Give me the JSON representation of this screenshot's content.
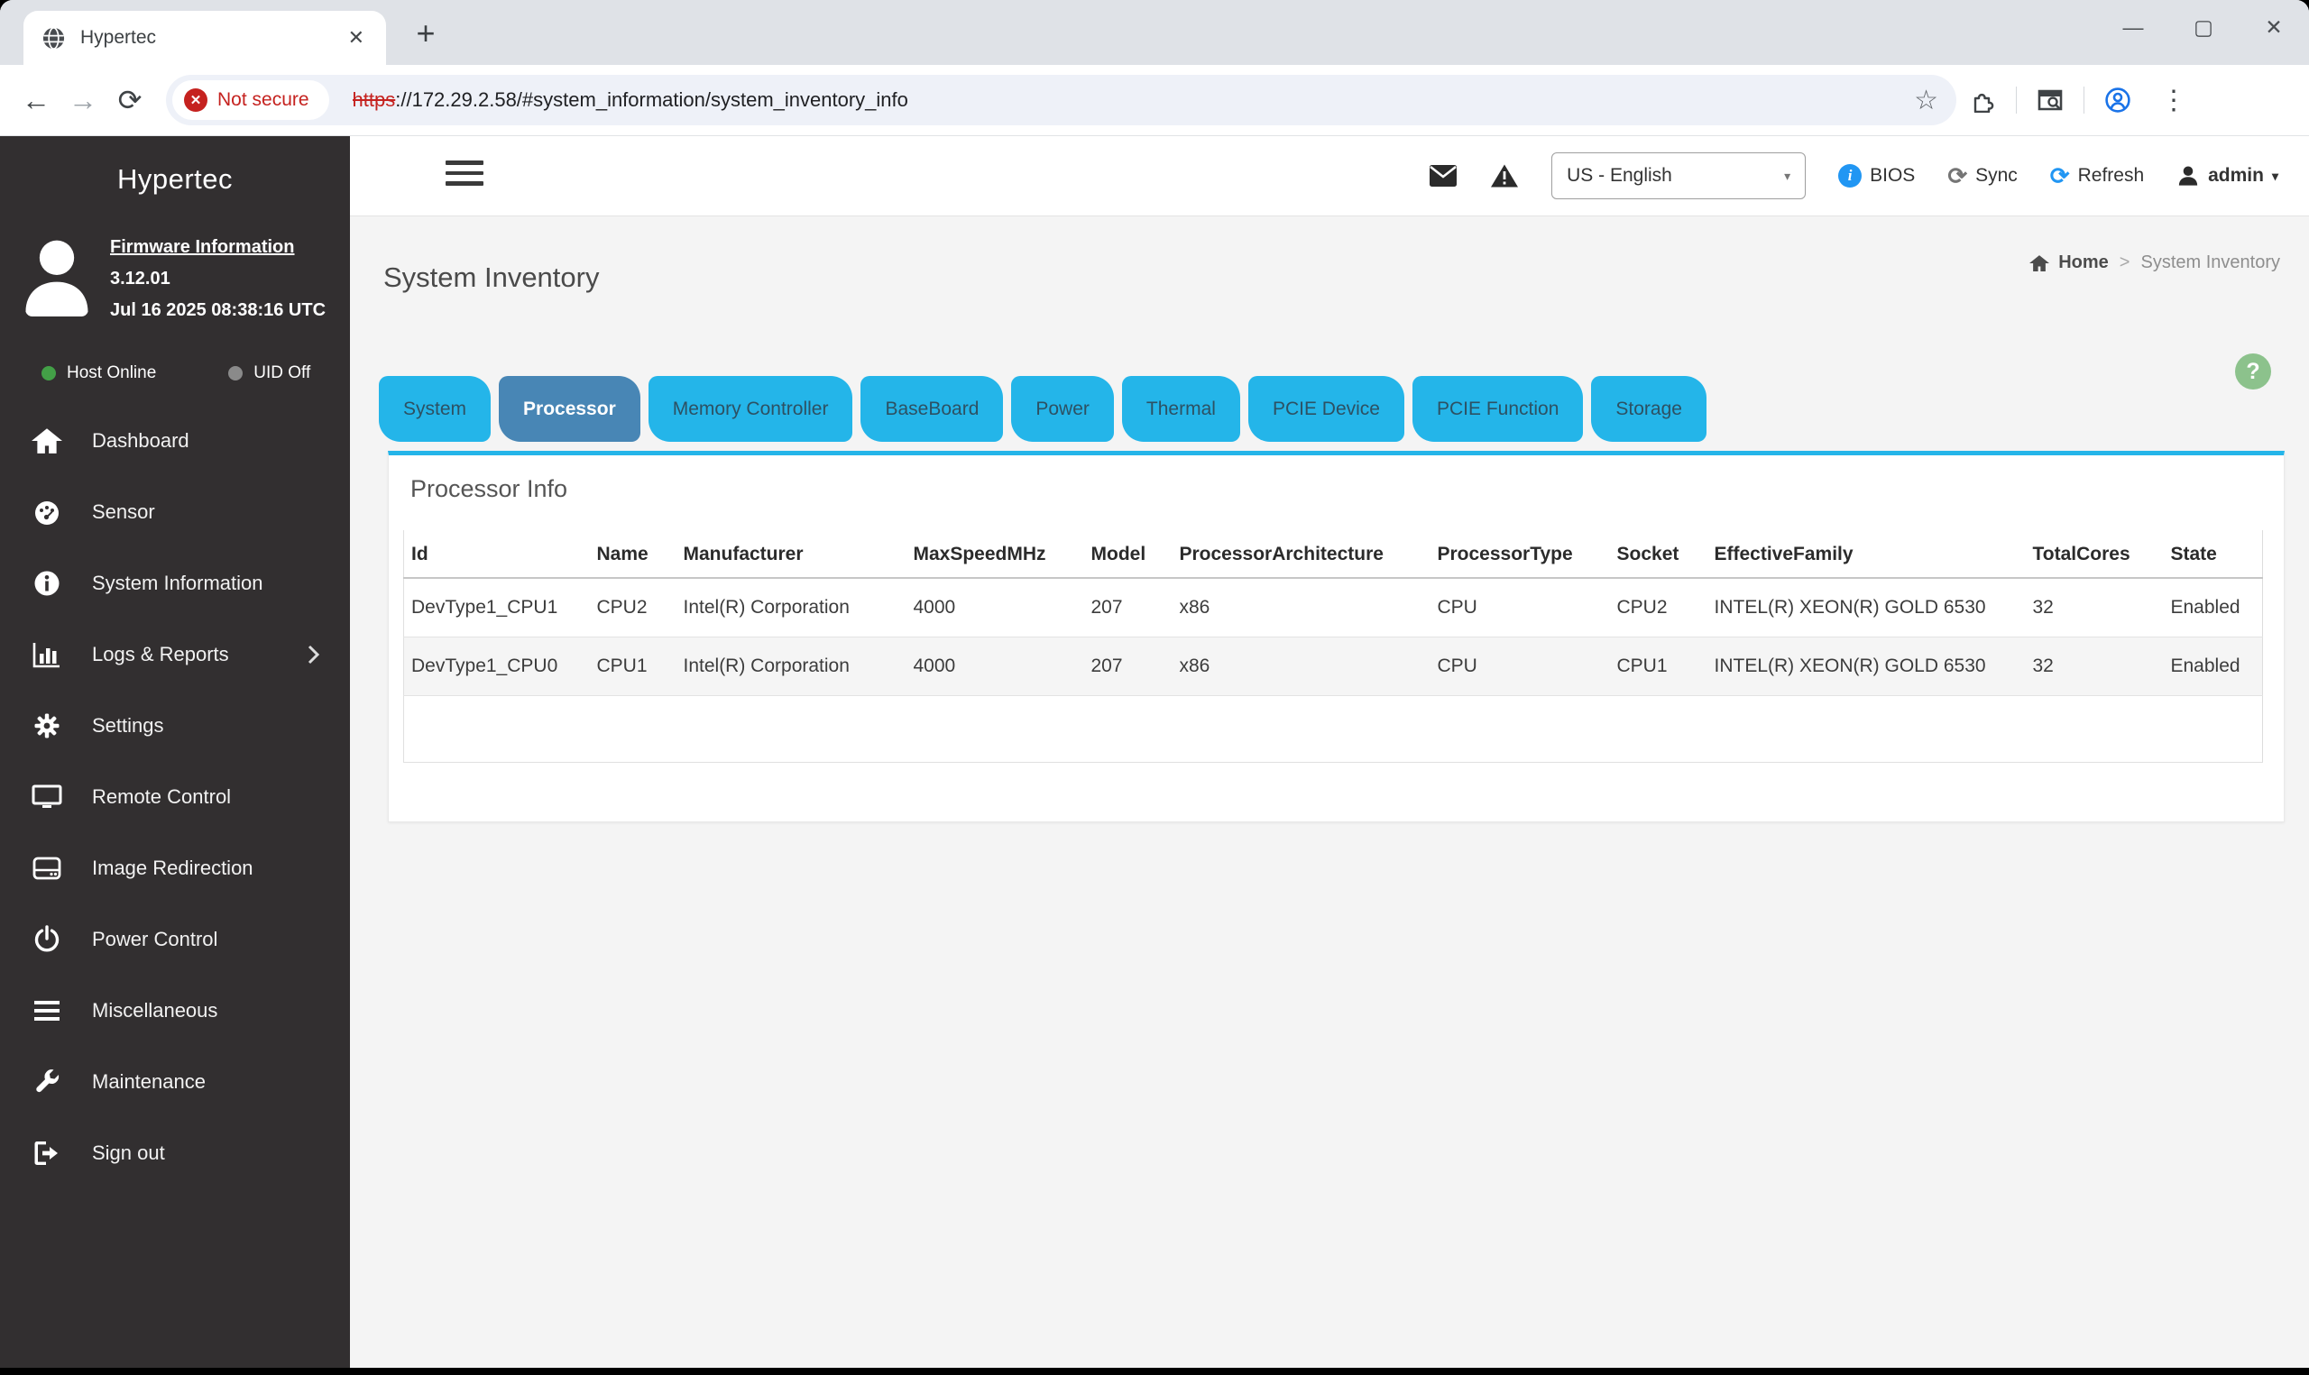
{
  "browser": {
    "tab_title": "Hypertec",
    "new_tab_glyph": "+",
    "close_glyph": "✕",
    "minimize_glyph": "—",
    "maximize_glyph": "▢",
    "back_glyph": "←",
    "forward_glyph": "→",
    "reload_glyph": "⟳",
    "menu_glyph": "⋮",
    "star_glyph": "☆",
    "not_secure_label": "Not secure",
    "url_scheme": "https",
    "url_rest": "://172.29.2.58/#system_information/system_inventory_info"
  },
  "sidebar": {
    "brand": "Hypertec",
    "firmware_link": "Firmware Information",
    "firmware_version": "3.12.01",
    "firmware_date": "Jul 16 2025 08:38:16 UTC",
    "host_status": "Host Online",
    "uid_status": "UID Off",
    "items": [
      {
        "label": "Dashboard",
        "icon": "home-icon"
      },
      {
        "label": "Sensor",
        "icon": "gauge-icon"
      },
      {
        "label": "System Information",
        "icon": "info-icon"
      },
      {
        "label": "Logs & Reports",
        "icon": "bar-chart-icon",
        "has_submenu": true
      },
      {
        "label": "Settings",
        "icon": "gear-icon"
      },
      {
        "label": "Remote Control",
        "icon": "monitor-icon"
      },
      {
        "label": "Image Redirection",
        "icon": "disc-icon"
      },
      {
        "label": "Power Control",
        "icon": "power-icon"
      },
      {
        "label": "Miscellaneous",
        "icon": "bars-icon"
      },
      {
        "label": "Maintenance",
        "icon": "wrench-icon"
      },
      {
        "label": "Sign out",
        "icon": "sign-out-icon"
      }
    ]
  },
  "header": {
    "language": "US - English",
    "bios_label": "BIOS",
    "sync_label": "Sync",
    "refresh_label": "Refresh",
    "user": "admin",
    "sync_glyph": "⟳",
    "refresh_glyph": "⟳",
    "caret_glyph": "▾"
  },
  "page": {
    "title": "System Inventory",
    "breadcrumb_home": "Home",
    "breadcrumb_sep": ">",
    "breadcrumb_current": "System Inventory",
    "help_glyph": "?"
  },
  "tabs": [
    {
      "label": "System",
      "active": false
    },
    {
      "label": "Processor",
      "active": true
    },
    {
      "label": "Memory Controller",
      "active": false
    },
    {
      "label": "BaseBoard",
      "active": false
    },
    {
      "label": "Power",
      "active": false
    },
    {
      "label": "Thermal",
      "active": false
    },
    {
      "label": "PCIE Device",
      "active": false
    },
    {
      "label": "PCIE Function",
      "active": false
    },
    {
      "label": "Storage",
      "active": false
    }
  ],
  "processor_info": {
    "title": "Processor Info",
    "columns": [
      "Id",
      "Name",
      "Manufacturer",
      "MaxSpeedMHz",
      "Model",
      "ProcessorArchitecture",
      "ProcessorType",
      "Socket",
      "EffectiveFamily",
      "TotalCores",
      "State"
    ],
    "rows": [
      [
        "DevType1_CPU1",
        "CPU2",
        "Intel(R) Corporation",
        "4000",
        "207",
        "x86",
        "CPU",
        "CPU2",
        "INTEL(R) XEON(R) GOLD 6530",
        "32",
        "Enabled"
      ],
      [
        "DevType1_CPU0",
        "CPU1",
        "Intel(R) Corporation",
        "4000",
        "207",
        "x86",
        "CPU",
        "CPU1",
        "INTEL(R) XEON(R) GOLD 6530",
        "32",
        "Enabled"
      ]
    ]
  },
  "colors": {
    "accent_cyan": "#24b5e9",
    "active_tab_blue": "#4886b5",
    "sidebar_bg": "#322f30",
    "help_green": "#8cc28c",
    "host_online_green": "#43a047",
    "uid_off_gray": "#8a8a8a",
    "link_blue": "#2196f3",
    "not_secure_red": "#c5221f"
  }
}
